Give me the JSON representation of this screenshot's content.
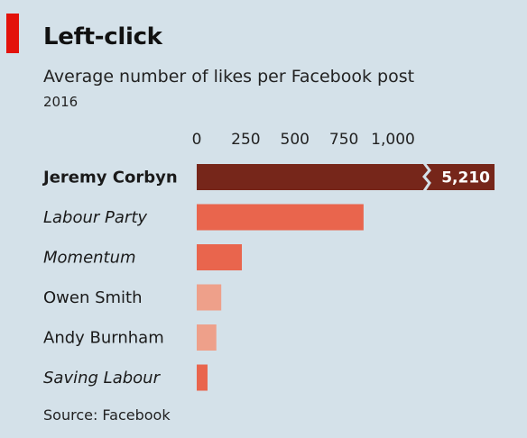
{
  "header": {
    "title": "Left-click",
    "subtitle": "Average number of likes per Facebook post",
    "year": "2016"
  },
  "source": "Source: Facebook",
  "chart_data": {
    "type": "bar",
    "orientation": "horizontal",
    "xlim": [
      0,
      1000
    ],
    "ticks": [
      0,
      250,
      500,
      750,
      1000
    ],
    "tick_labels": [
      "0",
      "250",
      "500",
      "750",
      "1,000"
    ],
    "axis_break": true,
    "bars": [
      {
        "label": "Jeremy Corbyn",
        "value": 5210,
        "value_label": "5,210",
        "style": "bold",
        "color": "#76261a"
      },
      {
        "label": "Labour Party",
        "value": 850,
        "style": "italic",
        "color": "#e9654d"
      },
      {
        "label": "Momentum",
        "value": 230,
        "style": "italic",
        "color": "#e9654d"
      },
      {
        "label": "Owen Smith",
        "value": 125,
        "style": "normal",
        "color": "#eea08a"
      },
      {
        "label": "Andy Burnham",
        "value": 100,
        "style": "normal",
        "color": "#eea08a"
      },
      {
        "label": "Saving Labour",
        "value": 55,
        "style": "italic",
        "color": "#e9654d"
      }
    ]
  }
}
